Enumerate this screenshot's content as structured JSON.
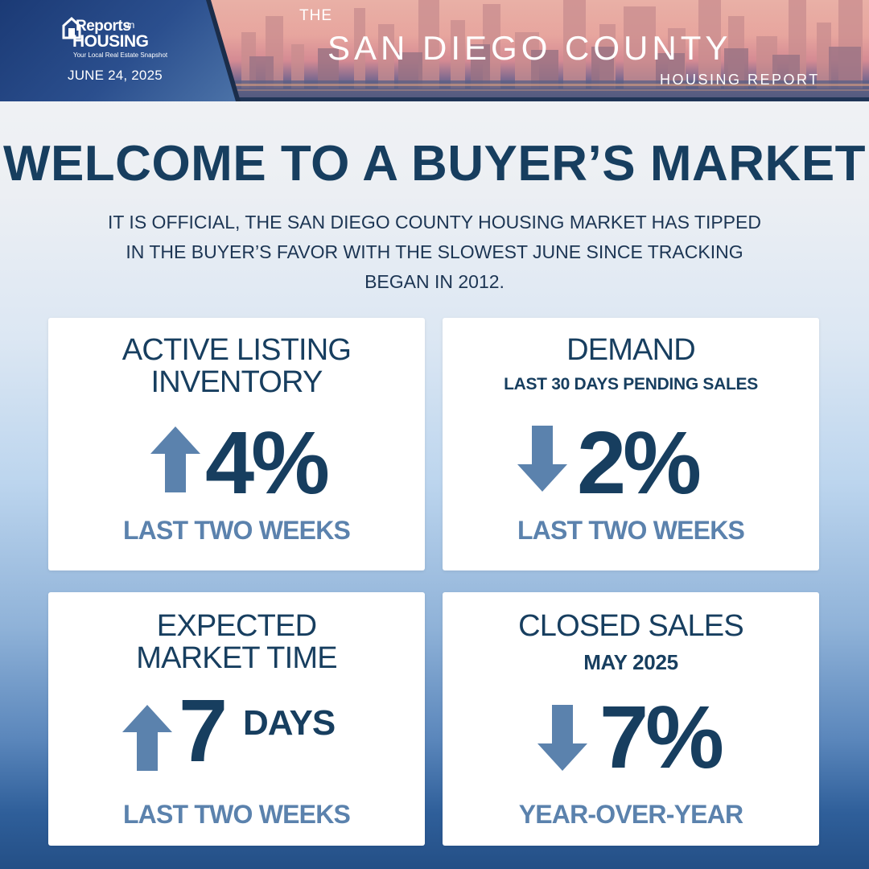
{
  "header": {
    "logo": {
      "reports": "Reports",
      "on": "on",
      "housing": "HOUSING",
      "tagline": "Your Local Real Estate Snapshot"
    },
    "date": "JUNE 24, 2025",
    "title_the": "THE",
    "title_main": "SAN DIEGO COUNTY",
    "title_sub": "HOUSING REPORT"
  },
  "headline": "WELCOME TO A BUYER’S MARKET",
  "intro_lines": [
    "IT IS OFFICIAL, THE SAN DIEGO COUNTY HOUSING MARKET HAS TIPPED",
    "IN THE BUYER’S FAVOR WITH THE SLOWEST JUNE SINCE TRACKING",
    "BEGAN IN 2012."
  ],
  "cards": {
    "inventory": {
      "title_lines": [
        "ACTIVE LISTING",
        "INVENTORY"
      ],
      "direction": "up",
      "value": "4%",
      "footer": "LAST TWO WEEKS"
    },
    "demand": {
      "title": "DEMAND",
      "subtitle": "LAST 30 DAYS PENDING SALES",
      "direction": "down",
      "value": "2%",
      "footer": "LAST TWO WEEKS"
    },
    "market_time": {
      "title_lines": [
        "EXPECTED",
        "MARKET TIME"
      ],
      "direction": "up",
      "value": "7",
      "unit": "DAYS",
      "footer": "LAST TWO WEEKS"
    },
    "closed_sales": {
      "title": "CLOSED SALES",
      "subtitle": "MAY 2025",
      "direction": "down",
      "value": "7%",
      "footer": "YEAR-OVER-YEAR"
    }
  },
  "colors": {
    "navy": "#173e5f",
    "arrow_blue": "#5b82ad",
    "card_bg": "#ffffff"
  },
  "icons": {
    "up": "arrow-up-icon",
    "down": "arrow-down-icon"
  }
}
